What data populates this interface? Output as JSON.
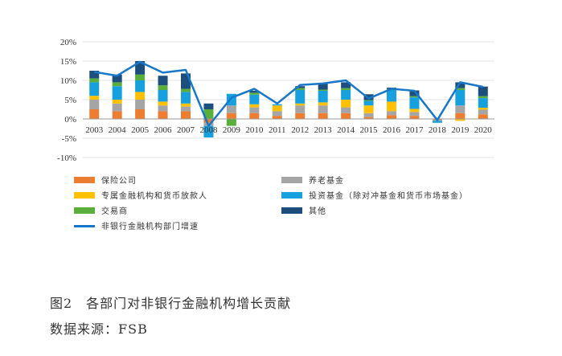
{
  "chart_data": {
    "type": "bar",
    "stacked": true,
    "categories": [
      "2003",
      "2004",
      "2005",
      "2006",
      "2007",
      "2008",
      "2009",
      "2010",
      "2011",
      "2012",
      "2013",
      "2014",
      "2015",
      "2016",
      "2017",
      "2018",
      "2019",
      "2020"
    ],
    "ylim": [
      -10,
      20
    ],
    "yticks": [
      "-10%",
      "-5%",
      "0%",
      "5%",
      "10%",
      "15%",
      "20%"
    ],
    "ytick_values": [
      -10,
      -5,
      0,
      5,
      10,
      15,
      20
    ],
    "grid": true,
    "legend_position": "bottom",
    "series": [
      {
        "name": "保险公司",
        "color": "#ed7d31",
        "values": [
          2.5,
          2.0,
          2.5,
          2.0,
          2.0,
          -1.0,
          1.5,
          1.5,
          0.8,
          1.5,
          1.5,
          1.5,
          0.5,
          1.0,
          0.8,
          -0.2,
          1.5,
          1.2
        ]
      },
      {
        "name": "养老基金",
        "color": "#a5a5a5",
        "values": [
          2.5,
          2.0,
          2.5,
          1.5,
          1.2,
          -0.8,
          2.0,
          1.5,
          1.2,
          2.0,
          2.0,
          1.5,
          1.0,
          1.0,
          1.0,
          -0.3,
          2.0,
          1.2
        ]
      },
      {
        "name": "专属金融机构和货币放款人",
        "color": "#ffc000",
        "values": [
          1.0,
          1.0,
          2.0,
          1.0,
          0.8,
          0.0,
          0.0,
          0.8,
          1.5,
          0.5,
          0.8,
          2.0,
          2.0,
          2.5,
          0.8,
          0.0,
          -0.5,
          0.5
        ]
      },
      {
        "name": "投资基金（除对冲基金和货币市场基金）",
        "color": "#17a0de",
        "values": [
          3.5,
          3.5,
          3.0,
          3.0,
          3.0,
          -3.0,
          3.0,
          2.5,
          0.3,
          3.5,
          3.0,
          2.5,
          1.2,
          3.0,
          3.0,
          -0.5,
          4.0,
          2.5
        ]
      },
      {
        "name": "交易商",
        "color": "#5aae3c",
        "values": [
          1.0,
          1.0,
          1.5,
          1.2,
          0.8,
          2.5,
          -1.8,
          0.5,
          0.0,
          0.5,
          0.3,
          0.5,
          0.2,
          0.3,
          0.3,
          0.0,
          0.5,
          0.5
        ]
      },
      {
        "name": "其他",
        "color": "#1d4f7e",
        "values": [
          2.0,
          2.0,
          3.5,
          2.5,
          4.0,
          1.5,
          0.0,
          0.5,
          0.0,
          0.5,
          1.5,
          1.5,
          1.5,
          0.3,
          1.5,
          0.0,
          1.5,
          2.5
        ]
      }
    ],
    "line": {
      "name": "非银行金融机构部门增速",
      "color": "#1777c8",
      "values": [
        12.2,
        11.2,
        14.8,
        12.0,
        12.7,
        -1.8,
        5.5,
        7.8,
        4.0,
        8.8,
        9.2,
        10.0,
        5.3,
        7.8,
        7.3,
        -0.3,
        9.5,
        8.3
      ]
    }
  },
  "caption": {
    "title": "图2　各部门对非银行金融机构增长贡献",
    "source": "数据来源：FSB"
  }
}
